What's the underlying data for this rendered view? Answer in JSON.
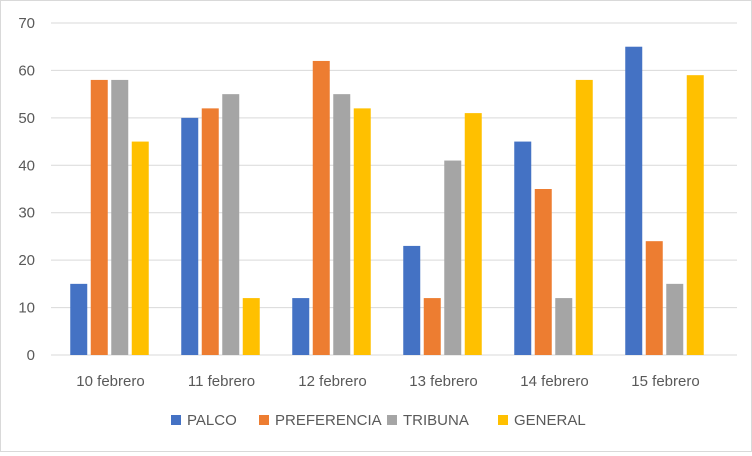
{
  "chart_data": {
    "type": "bar",
    "title": "",
    "xlabel": "",
    "ylabel": "",
    "categories": [
      "10 febrero",
      "11 febrero",
      "12 febrero",
      "13 febrero",
      "14 febrero",
      "15 febrero"
    ],
    "series": [
      {
        "name": "PALCO",
        "color": "#4472C4",
        "values": [
          15,
          50,
          12,
          23,
          45,
          65
        ]
      },
      {
        "name": "PREFERENCIA",
        "color": "#ED7D31",
        "values": [
          58,
          52,
          62,
          12,
          35,
          24
        ]
      },
      {
        "name": "TRIBUNA",
        "color": "#A5A5A5",
        "values": [
          58,
          55,
          55,
          41,
          12,
          15
        ]
      },
      {
        "name": "GENERAL",
        "color": "#FFC000",
        "values": [
          45,
          12,
          52,
          51,
          58,
          59
        ]
      }
    ],
    "ylim": [
      0,
      70
    ],
    "yticks": [
      0,
      10,
      20,
      30,
      40,
      50,
      60,
      70
    ],
    "grid": true,
    "legend": "bottom"
  }
}
